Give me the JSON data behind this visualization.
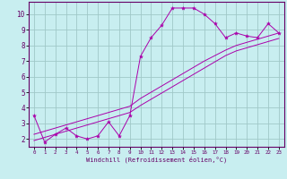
{
  "xlabel": "Windchill (Refroidissement éolien,°C)",
  "bg_color": "#c8eef0",
  "grid_color": "#a0c8c8",
  "line_color": "#aa00aa",
  "spine_color": "#660066",
  "x_data": [
    0,
    1,
    2,
    3,
    4,
    5,
    6,
    7,
    8,
    9,
    10,
    11,
    12,
    13,
    14,
    15,
    16,
    17,
    18,
    19,
    20,
    21,
    22,
    23
  ],
  "y_main": [
    3.5,
    1.8,
    2.3,
    2.7,
    2.2,
    2.0,
    2.2,
    3.1,
    2.2,
    3.5,
    7.3,
    8.5,
    9.3,
    10.4,
    10.4,
    10.4,
    10.0,
    9.4,
    8.5,
    8.8,
    8.6,
    8.5,
    9.4,
    8.8
  ],
  "y_linear1": [
    2.3,
    2.5,
    2.7,
    2.9,
    3.1,
    3.3,
    3.5,
    3.7,
    3.9,
    4.1,
    4.6,
    5.0,
    5.4,
    5.8,
    6.2,
    6.6,
    7.0,
    7.35,
    7.7,
    8.0,
    8.2,
    8.4,
    8.6,
    8.8
  ],
  "y_linear2": [
    1.9,
    2.1,
    2.3,
    2.5,
    2.7,
    2.9,
    3.1,
    3.3,
    3.5,
    3.7,
    4.15,
    4.55,
    4.95,
    5.35,
    5.75,
    6.15,
    6.55,
    6.95,
    7.35,
    7.65,
    7.85,
    8.05,
    8.25,
    8.45
  ],
  "ylim": [
    1.5,
    10.8
  ],
  "yticks": [
    2,
    3,
    4,
    5,
    6,
    7,
    8,
    9,
    10
  ],
  "xlim": [
    -0.5,
    23.5
  ],
  "xticks": [
    0,
    1,
    2,
    3,
    4,
    5,
    6,
    7,
    8,
    9,
    10,
    11,
    12,
    13,
    14,
    15,
    16,
    17,
    18,
    19,
    20,
    21,
    22,
    23
  ]
}
